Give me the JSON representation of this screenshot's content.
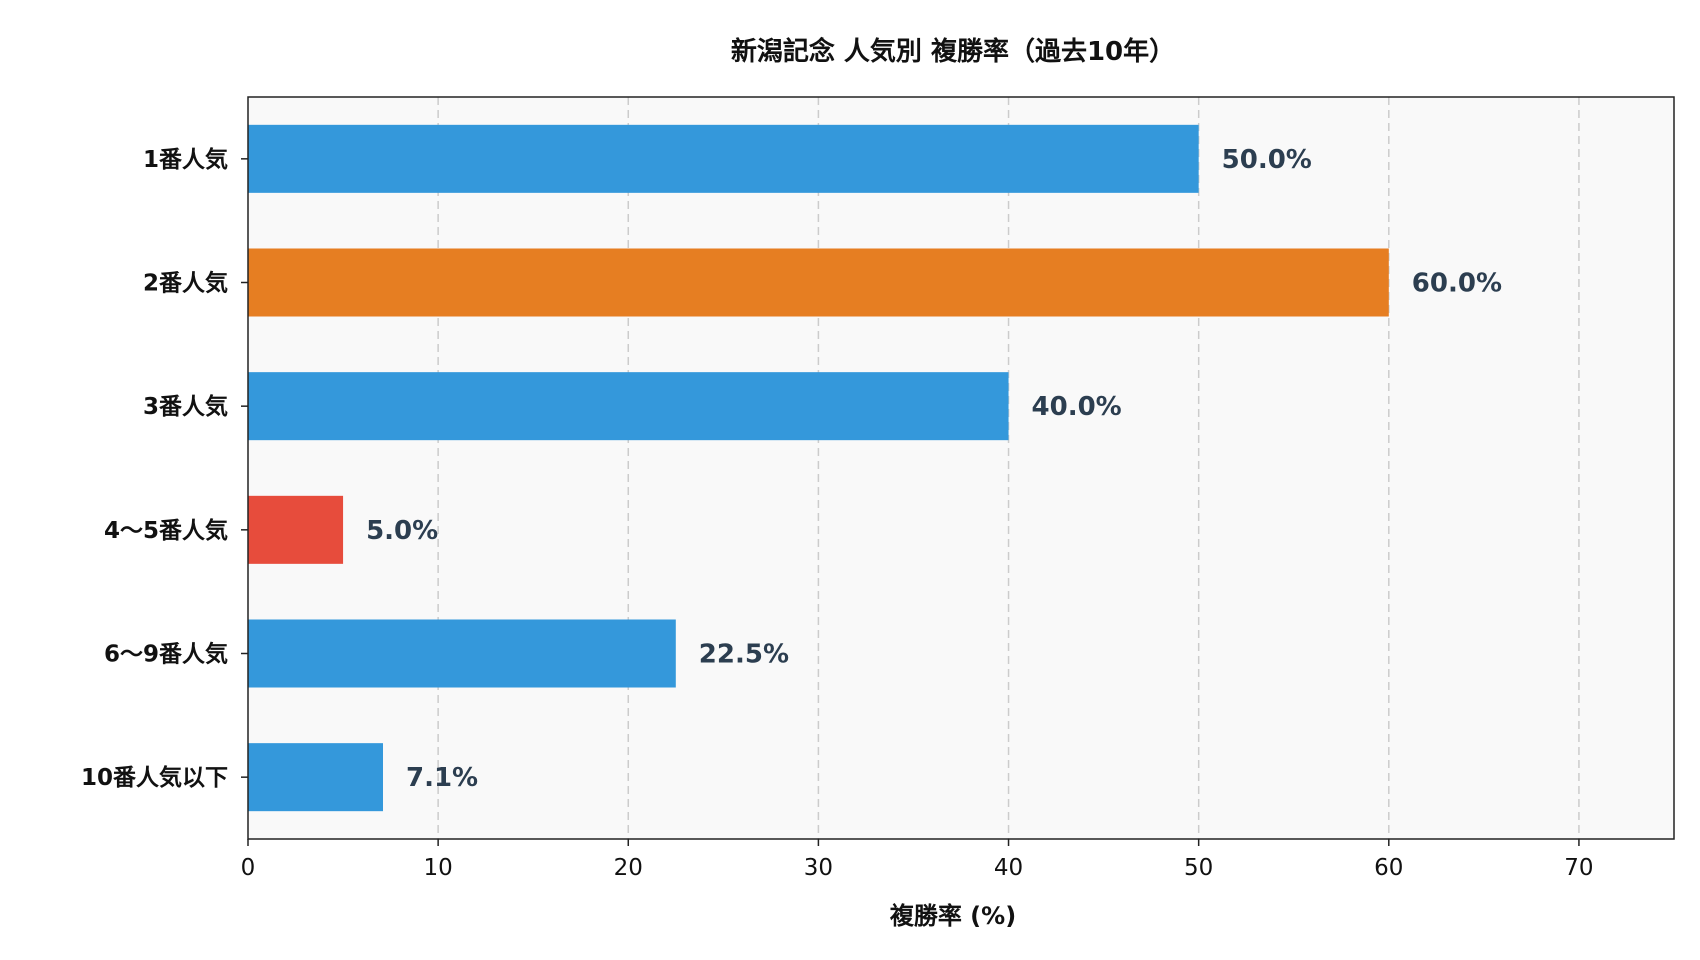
{
  "chart_data": {
    "type": "bar",
    "orientation": "horizontal",
    "title": "新潟記念 人気別 複勝率（過去10年）",
    "xlabel": "複勝率 (%)",
    "ylabel": "",
    "categories": [
      "1番人気",
      "2番人気",
      "3番人気",
      "4〜5番人気",
      "6〜9番人気",
      "10番人気以下"
    ],
    "values": [
      50.0,
      60.0,
      40.0,
      5.0,
      22.5,
      7.1
    ],
    "data_labels": [
      "50.0%",
      "60.0%",
      "40.0%",
      "5.0%",
      "22.5%",
      "7.1%"
    ],
    "bar_colors": [
      "#3498db",
      "#e67e22",
      "#3498db",
      "#e74c3c",
      "#3498db",
      "#3498db"
    ],
    "xlim": [
      0,
      75
    ],
    "xticks": [
      0,
      10,
      20,
      30,
      40,
      50,
      60,
      70
    ],
    "grid": "x-dashed",
    "plot_background": "#f9f9f9"
  }
}
